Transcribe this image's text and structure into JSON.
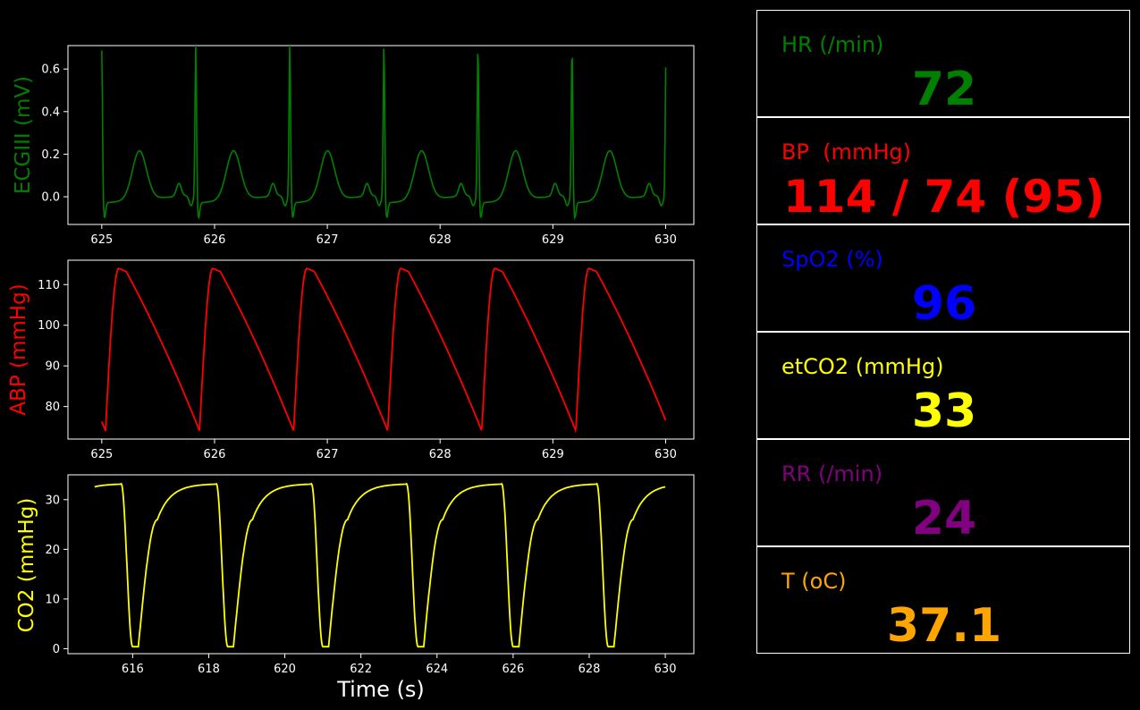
{
  "chart_data": [
    {
      "type": "line",
      "title": "",
      "xlabel": "",
      "ylabel": "ECGIII (mV)",
      "color": "#008000",
      "xlim": [
        624.7,
        630.25
      ],
      "ylim": [
        -0.13,
        0.71
      ],
      "xticks": [
        625,
        626,
        627,
        628,
        629,
        630
      ],
      "yticks": [
        0.0,
        0.2,
        0.4,
        0.6
      ],
      "ytick_labels": [
        "0.0",
        "0.2",
        "0.4",
        "0.6"
      ],
      "grid": false,
      "period_s": 0.834,
      "series": [
        {
          "x_start": 625.0,
          "x_end": 630.0,
          "min": -0.09,
          "max": 0.67,
          "t_wave": 0.21,
          "p_wave": 0.06
        }
      ]
    },
    {
      "type": "line",
      "title": "",
      "xlabel": "",
      "ylabel": "ABP (mmHg)",
      "color": "#ff0000",
      "xlim": [
        624.7,
        630.25
      ],
      "ylim": [
        72,
        116
      ],
      "xticks": [
        625,
        626,
        627,
        628,
        629,
        630
      ],
      "yticks": [
        80,
        90,
        100,
        110
      ],
      "ytick_labels": [
        "80",
        "90",
        "100",
        "110"
      ],
      "grid": false,
      "period_s": 0.834,
      "series": [
        {
          "x_start": 625.0,
          "x_end": 630.0,
          "min": 74,
          "max": 114
        }
      ]
    },
    {
      "type": "line",
      "title": "",
      "xlabel": "Time (s)",
      "ylabel": "CO2 (mmHg)",
      "color": "#ffff00",
      "xlim": [
        614.3,
        630.75
      ],
      "ylim": [
        -1,
        35
      ],
      "xticks": [
        616,
        618,
        620,
        622,
        624,
        626,
        628,
        630
      ],
      "yticks": [
        0,
        10,
        20,
        30
      ],
      "ytick_labels": [
        "0",
        "10",
        "20",
        "30"
      ],
      "grid": false,
      "period_s": 2.5,
      "series": [
        {
          "x_start": 615.0,
          "x_end": 630.0,
          "min": 0.4,
          "max": 33.2
        }
      ]
    }
  ],
  "vitals": [
    {
      "label": "HR (/min)",
      "value": "72",
      "color": "#008000"
    },
    {
      "label": "BP  (mmHg)",
      "value": "114 / 74 (95)",
      "color": "#ff0000"
    },
    {
      "label": "SpO2 (%)",
      "value": "96",
      "color": "#0000ff"
    },
    {
      "label": "etCO2 (mmHg)",
      "value": "33",
      "color": "#ffff00"
    },
    {
      "label": "RR (/min)",
      "value": "24",
      "color": "#800080"
    },
    {
      "label": "T (oC)",
      "value": "37.1",
      "color": "#ffa500"
    }
  ]
}
